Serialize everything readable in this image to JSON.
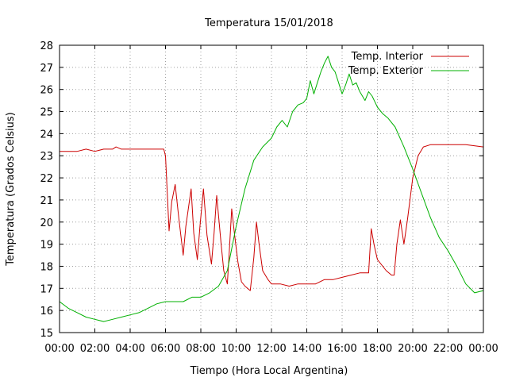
{
  "chart_data": {
    "type": "line",
    "title": "Temperatura 15/01/2018",
    "xlabel": "Tiempo (Hora Local Argentina)",
    "ylabel": "Temperatura (Grados Celsius)",
    "xlim": [
      0,
      24
    ],
    "ylim": [
      15,
      28
    ],
    "grid": true,
    "legend_position": "top-right",
    "x_ticks": [
      "00:00",
      "02:00",
      "04:00",
      "06:00",
      "08:00",
      "10:00",
      "12:00",
      "14:00",
      "16:00",
      "18:00",
      "20:00",
      "22:00",
      "00:00"
    ],
    "y_ticks": [
      15,
      16,
      17,
      18,
      19,
      20,
      21,
      22,
      23,
      24,
      25,
      26,
      27,
      28
    ],
    "series": [
      {
        "name": "Temp. Interior",
        "color": "#cc0000",
        "x": [
          0,
          0.5,
          1,
          1.5,
          2,
          2.5,
          3,
          3.2,
          3.5,
          4,
          4.5,
          5,
          5.5,
          5.9,
          6.0,
          6.2,
          6.35,
          6.55,
          6.75,
          7.0,
          7.15,
          7.45,
          7.6,
          7.8,
          7.95,
          8.15,
          8.35,
          8.6,
          8.75,
          8.9,
          9.15,
          9.3,
          9.5,
          9.6,
          9.75,
          9.9,
          10.1,
          10.3,
          10.5,
          10.8,
          11.0,
          11.15,
          11.3,
          11.5,
          11.8,
          12.0,
          12.5,
          13.0,
          13.5,
          14.0,
          14.5,
          15.0,
          15.5,
          16.0,
          16.5,
          17.0,
          17.3,
          17.5,
          17.65,
          17.8,
          18.0,
          18.5,
          18.8,
          18.95,
          19.1,
          19.3,
          19.5,
          19.7,
          20.0,
          20.3,
          20.6,
          21.0,
          22.0,
          23.0,
          24.0
        ],
        "y": [
          23.2,
          23.2,
          23.2,
          23.3,
          23.2,
          23.3,
          23.3,
          23.4,
          23.3,
          23.3,
          23.3,
          23.3,
          23.3,
          23.3,
          23.0,
          19.6,
          20.9,
          21.7,
          20.2,
          18.5,
          19.8,
          21.5,
          19.5,
          18.3,
          19.8,
          21.5,
          19.4,
          18.1,
          19.5,
          21.2,
          19.0,
          17.8,
          17.2,
          18.5,
          20.6,
          19.5,
          18.2,
          17.3,
          17.1,
          16.9,
          18.4,
          20.0,
          19.0,
          17.8,
          17.4,
          17.2,
          17.2,
          17.1,
          17.2,
          17.2,
          17.2,
          17.4,
          17.4,
          17.5,
          17.6,
          17.7,
          17.7,
          17.7,
          19.7,
          19.0,
          18.3,
          17.8,
          17.6,
          17.6,
          19.0,
          20.1,
          19.0,
          20.1,
          22.0,
          23.0,
          23.4,
          23.5,
          23.5,
          23.5,
          23.4
        ]
      },
      {
        "name": "Temp. Exterior",
        "color": "#00b000",
        "x": [
          0,
          0.5,
          1,
          1.5,
          2,
          2.5,
          3,
          3.5,
          4,
          4.5,
          5,
          5.5,
          6,
          6.5,
          7,
          7.5,
          8,
          8.5,
          9,
          9.5,
          10,
          10.5,
          11,
          11.5,
          12,
          12.3,
          12.6,
          12.9,
          13.2,
          13.5,
          13.8,
          14.0,
          14.2,
          14.4,
          14.6,
          14.8,
          15.0,
          15.2,
          15.4,
          15.6,
          15.8,
          16.0,
          16.2,
          16.4,
          16.6,
          16.8,
          17.0,
          17.3,
          17.5,
          17.7,
          18.0,
          18.3,
          18.6,
          19.0,
          19.5,
          20.0,
          20.5,
          21.0,
          21.5,
          22.0,
          22.5,
          23.0,
          23.5,
          24.0
        ],
        "y": [
          16.4,
          16.1,
          15.9,
          15.7,
          15.6,
          15.5,
          15.6,
          15.7,
          15.8,
          15.9,
          16.1,
          16.3,
          16.4,
          16.4,
          16.4,
          16.6,
          16.6,
          16.8,
          17.1,
          17.8,
          19.8,
          21.5,
          22.8,
          23.4,
          23.8,
          24.3,
          24.6,
          24.3,
          25.0,
          25.3,
          25.4,
          25.6,
          26.4,
          25.8,
          26.3,
          26.8,
          27.2,
          27.5,
          27.0,
          26.8,
          26.3,
          25.8,
          26.2,
          26.7,
          26.2,
          26.3,
          25.9,
          25.5,
          25.9,
          25.7,
          25.2,
          24.9,
          24.7,
          24.3,
          23.4,
          22.4,
          21.3,
          20.2,
          19.3,
          18.7,
          18.0,
          17.2,
          16.8,
          16.9
        ]
      }
    ]
  }
}
